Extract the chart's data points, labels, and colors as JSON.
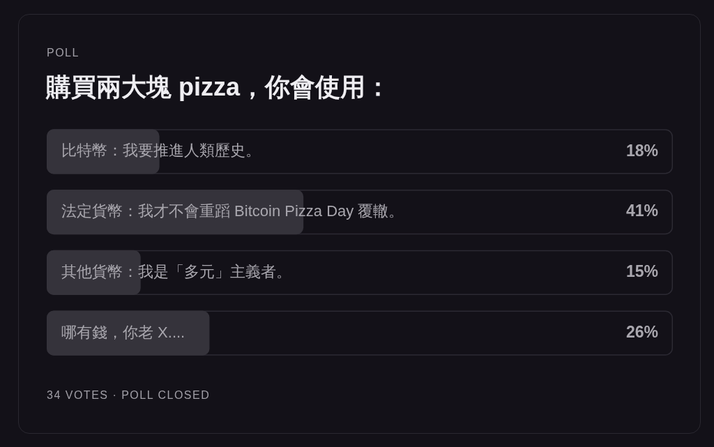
{
  "chart_data": {
    "type": "bar",
    "orientation": "horizontal",
    "title": "購買兩大塊 pizza，你會使用：",
    "categories": [
      "比特幣：我要推進人類歷史。",
      "法定貨幣：我才不會重蹈 Bitcoin Pizza Day 覆轍。",
      "其他貨幣：我是「多元」主義者。",
      "哪有錢，你老 X...."
    ],
    "values": [
      18,
      41,
      15,
      26
    ],
    "value_labels": [
      "18%",
      "41%",
      "15%",
      "26%"
    ],
    "color": "#35333b",
    "xlim": [
      0,
      100
    ],
    "tick_labels": "y",
    "annotations": [
      "POLL",
      "34 VOTES · POLL CLOSED"
    ]
  }
}
